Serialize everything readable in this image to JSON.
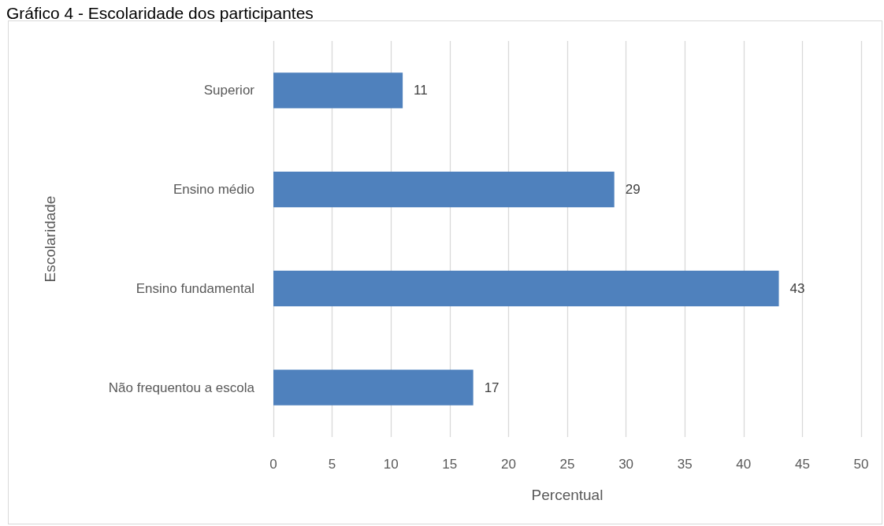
{
  "chart_data": {
    "type": "bar",
    "orientation": "horizontal",
    "title": "Gráfico 4 - Escolaridade dos participantes",
    "categories": [
      "Superior",
      "Ensino médio",
      "Ensino fundamental",
      "Não frequentou a escola"
    ],
    "values": [
      11,
      29,
      43,
      17
    ],
    "color": "#4f81bd",
    "xlabel": "Percentual",
    "ylabel": "Escolaridade",
    "xlim": [
      0,
      50
    ],
    "xticks": [
      0,
      5,
      10,
      15,
      20,
      25,
      30,
      35,
      40,
      45,
      50
    ],
    "grid": "x",
    "data_labels": true
  }
}
